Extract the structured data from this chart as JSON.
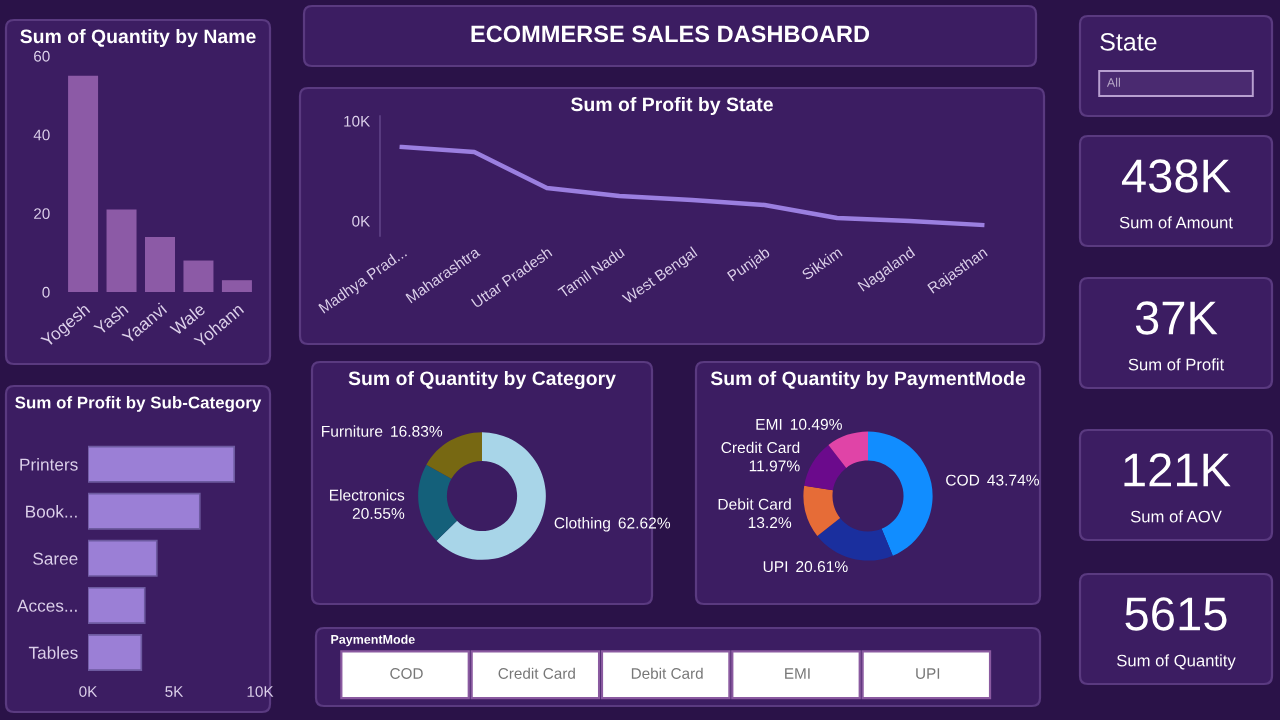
{
  "chart_data": [
    {
      "type": "bar",
      "title": "Sum of Quantity by Name",
      "categories": [
        "Yogesh",
        "Yash",
        "Yaanvi",
        "Wale",
        "Yohann"
      ],
      "values": [
        55,
        21,
        14,
        8,
        3
      ],
      "color": "#8c5aa6",
      "ylim": [
        0,
        60
      ],
      "yticks": [
        0,
        20,
        40,
        60
      ]
    },
    {
      "type": "other",
      "title": "ECOMMERSE SALES DASHBOARD"
    },
    {
      "type": "line",
      "title": "Sum of Profit by State",
      "categories": [
        "Madhya Prad...",
        "Maharashtra",
        "Uttar Pradesh",
        "Tamil Nadu",
        "West Bengal",
        "Punjab",
        "Sikkim",
        "Nagaland",
        "Rajasthan"
      ],
      "values": [
        7400,
        6900,
        3300,
        2500,
        2100,
        1600,
        300,
        0,
        -400
      ],
      "color": "#9b7fe0",
      "ylim": [
        -1500,
        10500
      ],
      "yticks": [
        {
          "value": 0,
          "label": "0K"
        },
        {
          "value": 10000,
          "label": "10K"
        }
      ],
      "marker": "none",
      "line_style": "solid"
    },
    {
      "type": "bar",
      "orientation": "horizontal",
      "title": "Sum of Profit by Sub-Category",
      "categories": [
        "Printers",
        "Book...",
        "Saree",
        "Acces...",
        "Tables"
      ],
      "values": [
        8500,
        6500,
        4000,
        3300,
        3100
      ],
      "color": "#9b7fd6",
      "xlim": [
        0,
        10000
      ],
      "xticks": [
        {
          "value": 0,
          "label": "0K"
        },
        {
          "value": 5000,
          "label": "5K"
        },
        {
          "value": 10000,
          "label": "10K"
        }
      ]
    },
    {
      "type": "donut",
      "title": "Sum of Quantity by Category",
      "categories": [
        "Clothing",
        "Electronics",
        "Furniture"
      ],
      "values": [
        62.62,
        20.55,
        16.83
      ],
      "value_labels": [
        "62.62%",
        "20.55%",
        "16.83%"
      ],
      "colors": [
        "#a8d5e8",
        "#14607a",
        "#776812"
      ]
    },
    {
      "type": "donut",
      "title": "Sum of Quantity by PaymentMode",
      "categories": [
        "COD",
        "UPI",
        "Debit Card",
        "Credit Card",
        "EMI"
      ],
      "values": [
        43.74,
        20.61,
        13.2,
        11.97,
        10.49
      ],
      "value_labels": [
        "43.74%",
        "20.61%",
        "13.2%",
        "11.97%",
        "10.49%"
      ],
      "colors": [
        "#118dff",
        "#1a2f9e",
        "#e66c37",
        "#6b0a8c",
        "#e044a7"
      ]
    },
    {
      "type": "other",
      "title": "State",
      "annotations": [
        "All"
      ]
    },
    {
      "type": "other",
      "annotations": [
        "438K",
        "Sum of Amount"
      ]
    },
    {
      "type": "other",
      "annotations": [
        "37K",
        "Sum of Profit"
      ]
    },
    {
      "type": "other",
      "annotations": [
        "121K",
        "Sum of AOV"
      ]
    },
    {
      "type": "other",
      "annotations": [
        "5615",
        "Sum of Quantity"
      ]
    },
    {
      "type": "other",
      "title": "PaymentMode",
      "annotations": [
        "COD",
        "Credit Card",
        "Debit Card",
        "EMI",
        "UPI"
      ]
    }
  ]
}
